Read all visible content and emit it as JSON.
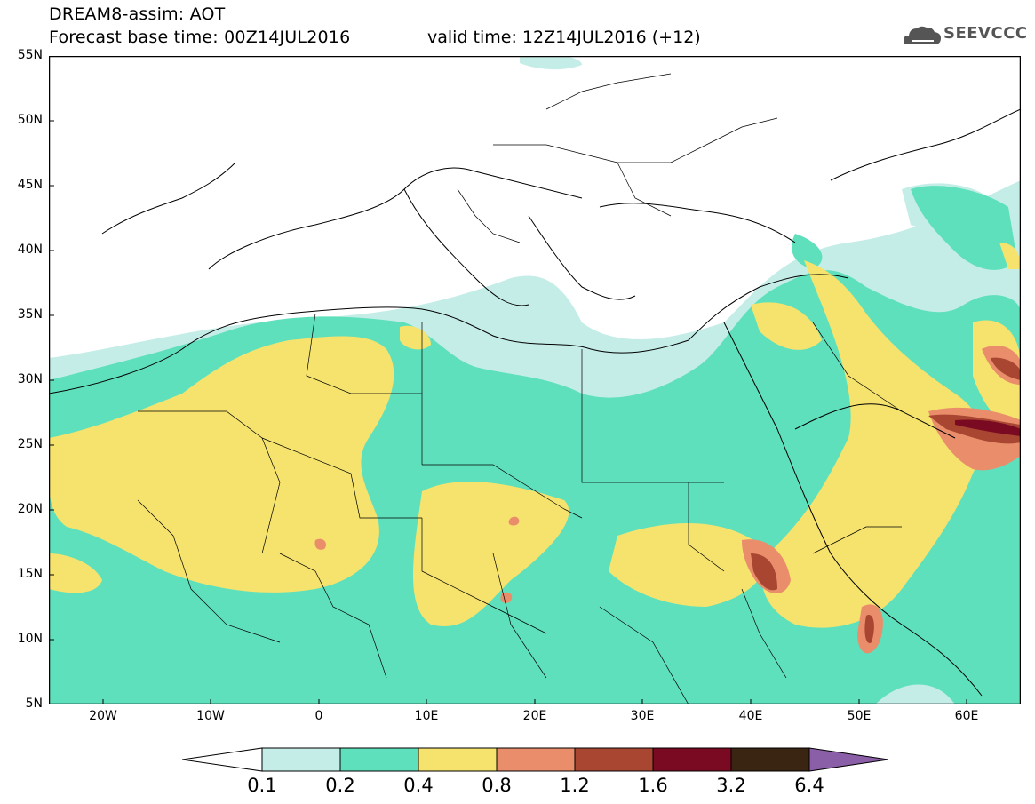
{
  "header": {
    "line1": "DREAM8-assim: AOT",
    "line2": "Forecast base time: 00Z14JUL2016",
    "valid": "valid time: 12Z14JUL2016 (+12)",
    "logo_text": "SEEVCCC"
  },
  "map": {
    "lon_range": [
      -25,
      65
    ],
    "lat_range": [
      5,
      55
    ],
    "y_labels": [
      "55N",
      "50N",
      "45N",
      "40N",
      "35N",
      "30N",
      "25N",
      "20N",
      "15N",
      "10N",
      "5N"
    ],
    "x_labels": [
      "20W",
      "10W",
      "0",
      "10E",
      "20E",
      "30E",
      "40E",
      "50E",
      "60E"
    ]
  },
  "legend": {
    "labels": [
      "0.1",
      "0.2",
      "0.4",
      "0.8",
      "1.2",
      "1.6",
      "3.2",
      "6.4"
    ],
    "colors": [
      "#ffffff",
      "#c4ede8",
      "#5ee0bc",
      "#f5e36e",
      "#e98d6b",
      "#a84632",
      "#7a0a22",
      "#3a2512",
      "#8b5fa8"
    ]
  }
}
